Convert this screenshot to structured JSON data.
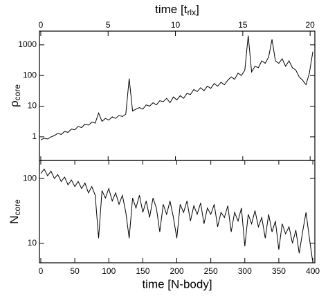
{
  "chart_data": [
    {
      "type": "line",
      "color": "#000000",
      "log_y": true,
      "ylabel": {
        "main": "ρ",
        "sub": "core"
      },
      "x2label": {
        "main": "time [t",
        "sub": "rlx",
        "end": "]"
      },
      "xlim": [
        -2,
        403
      ],
      "x2lim": [
        -0.1,
        20.35
      ],
      "x2ticks": [
        0,
        5,
        10,
        15,
        20
      ],
      "ylim": [
        0.17,
        2800
      ],
      "yticks": [
        1,
        10,
        100,
        1000
      ],
      "x": [
        0,
        5,
        10,
        15,
        20,
        25,
        30,
        35,
        40,
        45,
        50,
        55,
        60,
        65,
        70,
        75,
        80,
        85,
        90,
        95,
        100,
        105,
        110,
        115,
        120,
        125,
        130,
        135,
        140,
        145,
        150,
        155,
        160,
        165,
        170,
        175,
        180,
        185,
        190,
        195,
        200,
        205,
        210,
        215,
        220,
        225,
        230,
        235,
        240,
        245,
        250,
        255,
        260,
        265,
        270,
        275,
        280,
        285,
        290,
        295,
        300,
        305,
        310,
        315,
        320,
        325,
        330,
        335,
        340,
        345,
        350,
        355,
        360,
        365,
        370,
        375,
        380,
        385,
        390,
        395,
        400
      ],
      "values": [
        0.8,
        0.9,
        0.85,
        1.0,
        1.1,
        1.3,
        1.2,
        1.5,
        1.4,
        1.8,
        1.7,
        2.2,
        2.0,
        2.6,
        2.4,
        3.0,
        2.8,
        6,
        3.2,
        4,
        3.5,
        4.5,
        4,
        5,
        4.6,
        5.5,
        80,
        7,
        8,
        9,
        8,
        11,
        10,
        13,
        11,
        15,
        14,
        18,
        13,
        20,
        16,
        22,
        18,
        26,
        24,
        35,
        30,
        40,
        32,
        45,
        38,
        55,
        45,
        60,
        50,
        70,
        90,
        75,
        120,
        100,
        150,
        2000,
        130,
        200,
        180,
        300,
        250,
        400,
        1500,
        300,
        250,
        350,
        200,
        300,
        180,
        150,
        90,
        70,
        50,
        120,
        600
      ]
    },
    {
      "type": "line",
      "color": "#000000",
      "log_y": true,
      "ylabel": {
        "main": "N",
        "sub": "core"
      },
      "xlabel": "time [N-body]",
      "xlim": [
        -2,
        403
      ],
      "xticks": [
        0,
        50,
        100,
        150,
        200,
        250,
        300,
        350,
        400
      ],
      "ylim": [
        5,
        190
      ],
      "yticks": [
        10,
        100
      ],
      "x": [
        0,
        5,
        10,
        15,
        20,
        25,
        30,
        35,
        40,
        45,
        50,
        55,
        60,
        65,
        70,
        75,
        80,
        85,
        90,
        95,
        100,
        105,
        110,
        115,
        120,
        125,
        130,
        135,
        140,
        145,
        150,
        155,
        160,
        165,
        170,
        175,
        180,
        185,
        190,
        195,
        200,
        205,
        210,
        215,
        220,
        225,
        230,
        235,
        240,
        245,
        250,
        255,
        260,
        265,
        270,
        275,
        280,
        285,
        290,
        295,
        300,
        305,
        310,
        315,
        320,
        325,
        330,
        335,
        340,
        345,
        350,
        355,
        360,
        365,
        370,
        375,
        380,
        385,
        390,
        395,
        400
      ],
      "values": [
        120,
        140,
        110,
        130,
        100,
        115,
        90,
        105,
        80,
        95,
        75,
        90,
        70,
        85,
        60,
        75,
        55,
        12,
        65,
        50,
        70,
        45,
        60,
        40,
        55,
        30,
        12,
        50,
        35,
        55,
        30,
        45,
        25,
        50,
        35,
        15,
        40,
        28,
        45,
        25,
        12,
        40,
        30,
        45,
        22,
        38,
        28,
        42,
        20,
        35,
        28,
        40,
        18,
        30,
        25,
        38,
        15,
        30,
        22,
        35,
        9,
        28,
        20,
        32,
        18,
        25,
        12,
        28,
        15,
        22,
        8,
        20,
        14,
        18,
        10,
        16,
        7,
        15,
        30,
        12,
        5
      ]
    }
  ]
}
